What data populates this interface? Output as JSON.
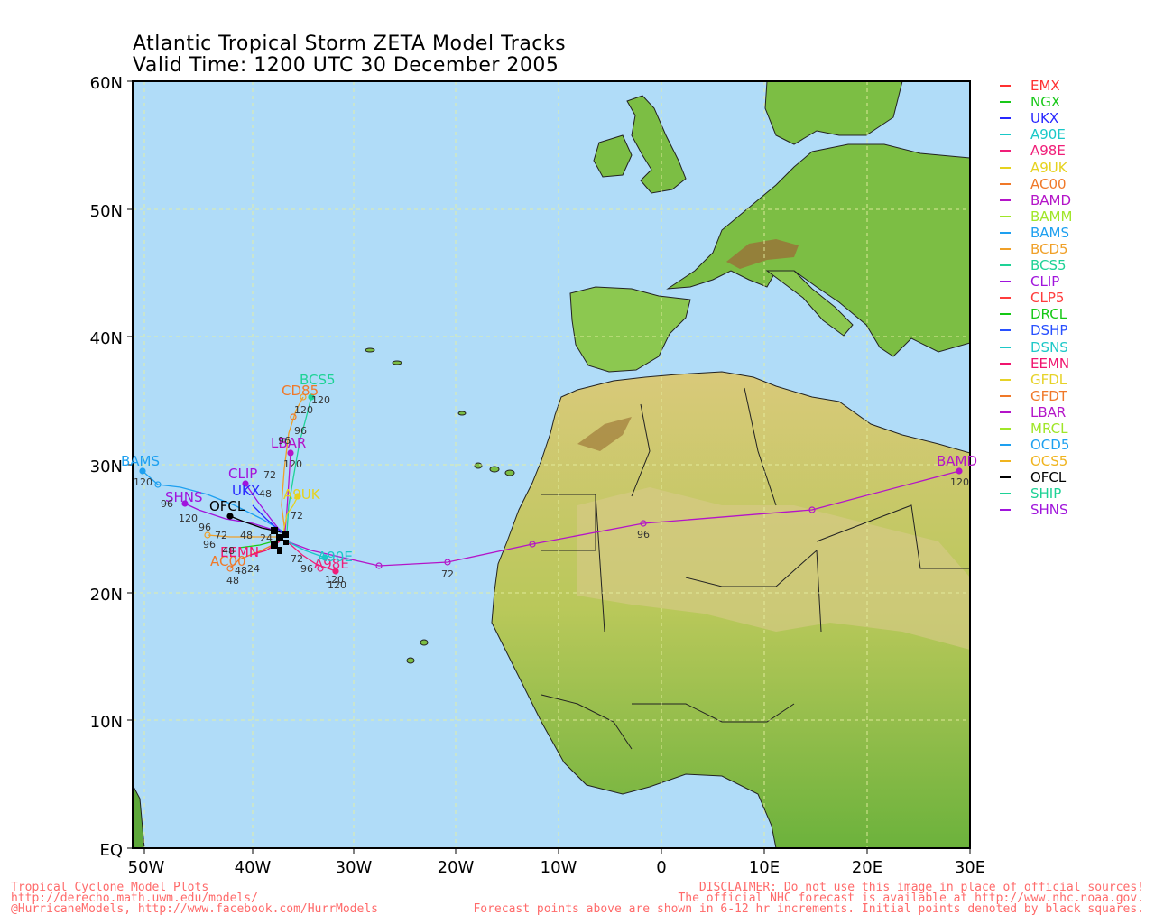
{
  "title": {
    "line1": "Atlantic Tropical Storm ZETA Model Tracks",
    "line2": "Valid Time: 1200 UTC 30 December 2005"
  },
  "map": {
    "lat_labels": [
      "60N",
      "50N",
      "40N",
      "30N",
      "20N",
      "10N",
      "EQ"
    ],
    "lon_labels": [
      "50W",
      "40W",
      "30W",
      "20W",
      "10W",
      "0",
      "10E",
      "20E",
      "30E"
    ],
    "ocean_color": "#b0dcf8",
    "grid_color": "#e6f0a0"
  },
  "legend": [
    {
      "name": "EMX",
      "color": "#ff3030"
    },
    {
      "name": "NGX",
      "color": "#19c819"
    },
    {
      "name": "UKX",
      "color": "#2828ff"
    },
    {
      "name": "A90E",
      "color": "#19c8c8"
    },
    {
      "name": "A98E",
      "color": "#f01e78"
    },
    {
      "name": "A9UK",
      "color": "#e6d21e"
    },
    {
      "name": "AC00",
      "color": "#f07828"
    },
    {
      "name": "BAMD",
      "color": "#b414c8"
    },
    {
      "name": "BAMM",
      "color": "#a0e628"
    },
    {
      "name": "BAMS",
      "color": "#1ea0f0"
    },
    {
      "name": "BCD5",
      "color": "#f0a028"
    },
    {
      "name": "BCS5",
      "color": "#1ed296"
    },
    {
      "name": "CLIP",
      "color": "#a014dc"
    },
    {
      "name": "CLP5",
      "color": "#ff3c3c"
    },
    {
      "name": "DRCL",
      "color": "#14c814"
    },
    {
      "name": "DSHP",
      "color": "#2850ff"
    },
    {
      "name": "DSNS",
      "color": "#1ec8c8"
    },
    {
      "name": "EEMN",
      "color": "#f0146e"
    },
    {
      "name": "GFDL",
      "color": "#e6d228"
    },
    {
      "name": "GFDT",
      "color": "#f07828"
    },
    {
      "name": "LBAR",
      "color": "#b414c8"
    },
    {
      "name": "MRCL",
      "color": "#a0e628"
    },
    {
      "name": "OCD5",
      "color": "#1ea0f0"
    },
    {
      "name": "OCS5",
      "color": "#f0b41e"
    },
    {
      "name": "OFCL",
      "color": "#000000"
    },
    {
      "name": "SHIP",
      "color": "#1ed296"
    },
    {
      "name": "SHNS",
      "color": "#a014dc"
    }
  ],
  "track_labels": {
    "bcs5": "BCS5",
    "cd85": "CD85",
    "lbar": "LBAR",
    "bams": "BAMS",
    "clip": "CLIP",
    "ukx": "UKX",
    "shns": "SHNS",
    "ofcl": "OFCL",
    "a9uk": "A9UK",
    "bamd": "BAMD",
    "a98e": "A98E",
    "a90e": "A90E",
    "ac00": "AC00",
    "eemn": "EEMN"
  },
  "forecast_hour_labels": {
    "h120": "120",
    "h96": "96",
    "h72": "72",
    "h48": "48",
    "h24": "24"
  },
  "footer": {
    "left": [
      "Tropical Cyclone Model Plots",
      "http://derecho.math.uwm.edu/models/",
      "@HurricaneModels, http://www.facebook.com/HurrModels"
    ],
    "right": [
      "DISCLAIMER: Do not use this image in place of official sources!",
      "The official NHC forecast is available at http://www.nhc.noaa.gov.",
      "Forecast points above are shown in 6-12 hr increments. Initial points denoted by black squares."
    ]
  }
}
